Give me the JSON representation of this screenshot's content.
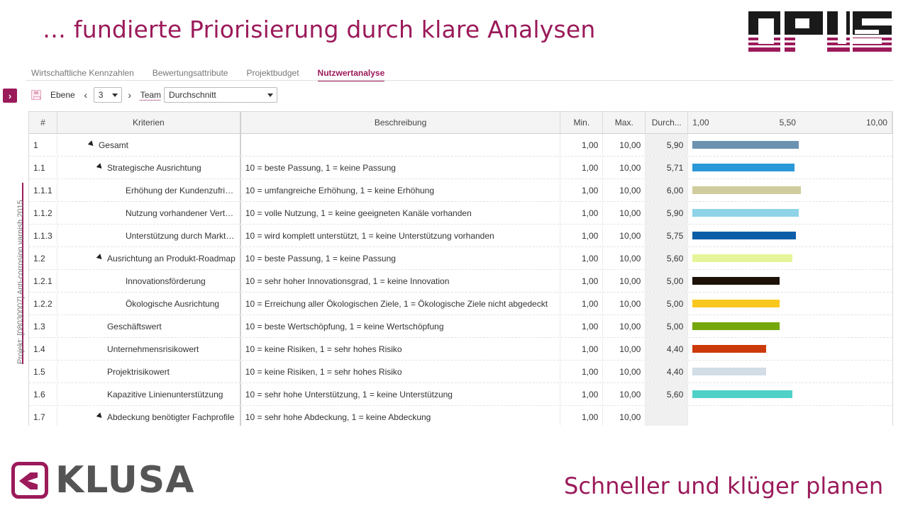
{
  "slide": {
    "title": "… fundierte Priorisierung durch klare Analysen",
    "slogan": "Schneller und klüger planen",
    "klusa_logo_text": "KLUSA",
    "opus_logo_text": "OPUS"
  },
  "side": {
    "project_label": "Projekt: [08030007] Anti-corrosion varnish 2015"
  },
  "tabs": [
    {
      "label": "Wirtschaftliche Kennzahlen",
      "active": false
    },
    {
      "label": "Bewertungsattribute",
      "active": false
    },
    {
      "label": "Projektbudget",
      "active": false
    },
    {
      "label": "Nutzwertanalyse",
      "active": true
    }
  ],
  "toolbar": {
    "level_label": "Ebene",
    "level_value": "3",
    "team_label": "Team",
    "team_value": "Durchschnitt"
  },
  "grid": {
    "headers": {
      "num": "#",
      "criteria": "Kriterien",
      "description": "Beschreibung",
      "min": "Min.",
      "max": "Max.",
      "avg": "Durch...",
      "scale_min": "1,00",
      "scale_mid": "5,50",
      "scale_max": "10,00"
    },
    "rows": [
      {
        "num": "1",
        "criteria": "Gesamt",
        "description": "",
        "min": "1,00",
        "max": "10,00",
        "avg": "5,90",
        "value": 5.9,
        "color": "#6b93b0",
        "level": 0,
        "expandable": true
      },
      {
        "num": "1.1",
        "criteria": "Strategische Ausrichtung",
        "description": "10 = beste Passung, 1 = keine Passung",
        "min": "1,00",
        "max": "10,00",
        "avg": "5,71",
        "value": 5.71,
        "color": "#2b98d8",
        "level": 1,
        "expandable": true
      },
      {
        "num": "1.1.1",
        "criteria": "Erhöhung der Kundenzufriedenheit",
        "description": "10 = umfangreiche Erhöhung, 1 = keine Erhöhung",
        "min": "1,00",
        "max": "10,00",
        "avg": "6,00",
        "value": 6.0,
        "color": "#cfcd9e",
        "level": 2,
        "expandable": false
      },
      {
        "num": "1.1.2",
        "criteria": "Nutzung vorhandener Vertriebska...",
        "description": "10 = volle Nutzung, 1 = keine geeigneten Kanäle vorhanden",
        "min": "1,00",
        "max": "10,00",
        "avg": "5,90",
        "value": 5.9,
        "color": "#8ed3e8",
        "level": 2,
        "expandable": false
      },
      {
        "num": "1.1.3",
        "criteria": "Unterstützung durch Marktetingstr...",
        "description": "10 = wird komplett unterstützt, 1 = keine Unterstützung vorhanden",
        "min": "1,00",
        "max": "10,00",
        "avg": "5,75",
        "value": 5.75,
        "color": "#0c5da8",
        "level": 2,
        "expandable": false
      },
      {
        "num": "1.2",
        "criteria": "Ausrichtung an Produkt-Roadmap",
        "description": "10 = beste Passung, 1 = keine Passung",
        "min": "1,00",
        "max": "10,00",
        "avg": "5,60",
        "value": 5.6,
        "color": "#e6f59a",
        "level": 1,
        "expandable": true
      },
      {
        "num": "1.2.1",
        "criteria": "Innovationsförderung",
        "description": "10 = sehr hoher Innovationsgrad, 1 = keine Innovation",
        "min": "1,00",
        "max": "10,00",
        "avg": "5,00",
        "value": 5.0,
        "color": "#1c1208",
        "level": 2,
        "expandable": false
      },
      {
        "num": "1.2.2",
        "criteria": "Ökologische Ausrichtung",
        "description": "10 = Erreichung aller Ökologischen Ziele, 1 = Ökologische Ziele nicht abgedeckt",
        "min": "1,00",
        "max": "10,00",
        "avg": "5,00",
        "value": 5.0,
        "color": "#f8c81e",
        "level": 2,
        "expandable": false
      },
      {
        "num": "1.3",
        "criteria": "Geschäftswert",
        "description": "10 = beste Wertschöpfung, 1 = keine Wertschöpfung",
        "min": "1,00",
        "max": "10,00",
        "avg": "5,00",
        "value": 5.0,
        "color": "#74a80c",
        "level": 1,
        "expandable": false
      },
      {
        "num": "1.4",
        "criteria": "Unternehmensrisikowert",
        "description": "10 = keine Risiken, 1 = sehr hohes Risiko",
        "min": "1,00",
        "max": "10,00",
        "avg": "4,40",
        "value": 4.4,
        "color": "#cc3a0a",
        "level": 1,
        "expandable": false
      },
      {
        "num": "1.5",
        "criteria": "Projektrisikowert",
        "description": "10 = keine Risiken, 1 = sehr hohes Risiko",
        "min": "1,00",
        "max": "10,00",
        "avg": "4,40",
        "value": 4.4,
        "color": "#d2dde6",
        "level": 1,
        "expandable": false
      },
      {
        "num": "1.6",
        "criteria": "Kapazitive Linienunterstützung",
        "description": "10 = sehr hohe Unterstützung, 1 = keine Unterstützung",
        "min": "1,00",
        "max": "10,00",
        "avg": "5,60",
        "value": 5.6,
        "color": "#4fd1c8",
        "level": 1,
        "expandable": false
      },
      {
        "num": "1.7",
        "criteria": "Abdeckung benötigter Fachprofile",
        "description": "10 = sehr hohe Abdeckung, 1 = keine Abdeckung",
        "min": "1,00",
        "max": "10,00",
        "avg": "",
        "value": null,
        "color": "",
        "level": 1,
        "expandable": true
      }
    ],
    "scale": {
      "min": 1,
      "max": 10
    }
  },
  "colors": {
    "accent": "#9b1a5a"
  }
}
